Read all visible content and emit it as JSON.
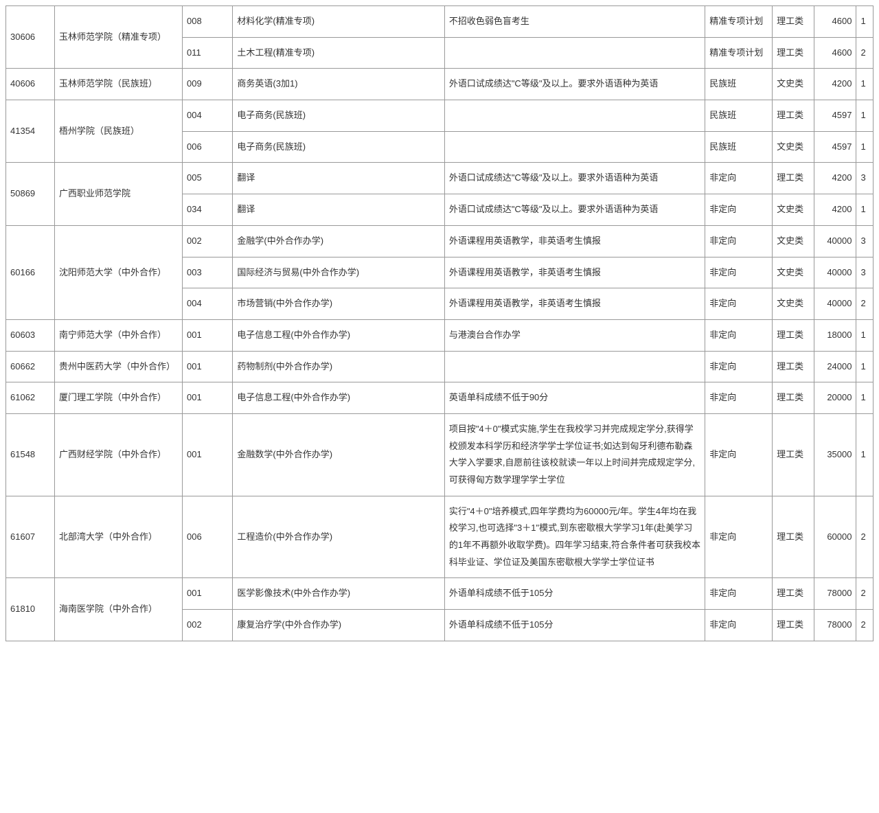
{
  "rows": [
    {
      "code": "30606",
      "school": "玉林师范学院（精准专项）",
      "major_code": "008",
      "major_name": "材料化学(精准专项)",
      "note": "不招收色弱色盲考生",
      "plan_type": "精准专项计划",
      "category": "理工类",
      "fee": "4600",
      "count": "1"
    },
    {
      "code": "",
      "school": "",
      "major_code": "011",
      "major_name": "土木工程(精准专项)",
      "note": "",
      "plan_type": "精准专项计划",
      "category": "理工类",
      "fee": "4600",
      "count": "2"
    },
    {
      "code": "40606",
      "school": "玉林师范学院（民族班）",
      "major_code": "009",
      "major_name": "商务英语(3加1)",
      "note": "外语口试成绩达\"C等级\"及以上。要求外语语种为英语",
      "plan_type": "民族班",
      "category": "文史类",
      "fee": "4200",
      "count": "1"
    },
    {
      "code": "41354",
      "school": "梧州学院（民族班）",
      "major_code": "004",
      "major_name": "电子商务(民族班)",
      "note": "",
      "plan_type": "民族班",
      "category": "理工类",
      "fee": "4597",
      "count": "1"
    },
    {
      "code": "",
      "school": "",
      "major_code": "006",
      "major_name": "电子商务(民族班)",
      "note": "",
      "plan_type": "民族班",
      "category": "文史类",
      "fee": "4597",
      "count": "1"
    },
    {
      "code": "50869",
      "school": "广西职业师范学院",
      "major_code": "005",
      "major_name": "翻译",
      "note": "外语口试成绩达\"C等级\"及以上。要求外语语种为英语",
      "plan_type": "非定向",
      "category": "理工类",
      "fee": "4200",
      "count": "3"
    },
    {
      "code": "",
      "school": "",
      "major_code": "034",
      "major_name": "翻译",
      "note": "外语口试成绩达\"C等级\"及以上。要求外语语种为英语",
      "plan_type": "非定向",
      "category": "文史类",
      "fee": "4200",
      "count": "1"
    },
    {
      "code": "60166",
      "school": "沈阳师范大学（中外合作）",
      "major_code": "002",
      "major_name": "金融学(中外合作办学)",
      "note": "外语课程用英语教学，非英语考生慎报",
      "plan_type": "非定向",
      "category": "文史类",
      "fee": "40000",
      "count": "3"
    },
    {
      "code": "",
      "school": "",
      "major_code": "003",
      "major_name": "国际经济与贸易(中外合作办学)",
      "note": "外语课程用英语教学，非英语考生慎报",
      "plan_type": "非定向",
      "category": "文史类",
      "fee": "40000",
      "count": "3"
    },
    {
      "code": "",
      "school": "",
      "major_code": "004",
      "major_name": "市场营销(中外合作办学)",
      "note": "外语课程用英语教学，非英语考生慎报",
      "plan_type": "非定向",
      "category": "文史类",
      "fee": "40000",
      "count": "2"
    },
    {
      "code": "60603",
      "school": "南宁师范大学（中外合作）",
      "major_code": "001",
      "major_name": "电子信息工程(中外合作办学)",
      "note": "与港澳台合作办学",
      "plan_type": "非定向",
      "category": "理工类",
      "fee": "18000",
      "count": "1"
    },
    {
      "code": "60662",
      "school": "贵州中医药大学（中外合作）",
      "major_code": "001",
      "major_name": "药物制剂(中外合作办学)",
      "note": "",
      "plan_type": "非定向",
      "category": "理工类",
      "fee": "24000",
      "count": "1"
    },
    {
      "code": "61062",
      "school": "厦门理工学院（中外合作）",
      "major_code": "001",
      "major_name": "电子信息工程(中外合作办学)",
      "note": "英语单科成绩不低于90分",
      "plan_type": "非定向",
      "category": "理工类",
      "fee": "20000",
      "count": "1"
    },
    {
      "code": "61548",
      "school": "广西财经学院（中外合作）",
      "major_code": "001",
      "major_name": "金融数学(中外合作办学)",
      "note": "项目按\"4＋0\"模式实施,学生在我校学习并完成规定学分,获得学校颁发本科学历和经济学学士学位证书;如达到匈牙利德布勒森大学入学要求,自愿前往该校就读一年以上时间并完成规定学分,可获得匈方数学理学学士学位",
      "plan_type": "非定向",
      "category": "理工类",
      "fee": "35000",
      "count": "1"
    },
    {
      "code": "61607",
      "school": "北部湾大学（中外合作）",
      "major_code": "006",
      "major_name": "工程造价(中外合作办学)",
      "note": "实行\"4＋0\"培养模式,四年学费均为60000元/年。学生4年均在我校学习,也可选择\"3＋1\"模式,到东密歇根大学学习1年(赴美学习的1年不再额外收取学费)。四年学习结束,符合条件者可获我校本科毕业证、学位证及美国东密歇根大学学士学位证书",
      "plan_type": "非定向",
      "category": "理工类",
      "fee": "60000",
      "count": "2"
    },
    {
      "code": "61810",
      "school": "海南医学院（中外合作）",
      "major_code": "001",
      "major_name": "医学影像技术(中外合作办学)",
      "note": "外语单科成绩不低于105分",
      "plan_type": "非定向",
      "category": "理工类",
      "fee": "78000",
      "count": "2"
    },
    {
      "code": "",
      "school": "",
      "major_code": "002",
      "major_name": "康复治疗学(中外合作办学)",
      "note": "外语单科成绩不低于105分",
      "plan_type": "非定向",
      "category": "理工类",
      "fee": "78000",
      "count": "2"
    }
  ],
  "rowspans": {
    "0": {
      "code": 2,
      "school": 2
    },
    "3": {
      "code": 2,
      "school": 2
    },
    "5": {
      "code": 2,
      "school": 2
    },
    "7": {
      "code": 3,
      "school": 3
    },
    "15": {
      "code": 2,
      "school": 2
    }
  }
}
